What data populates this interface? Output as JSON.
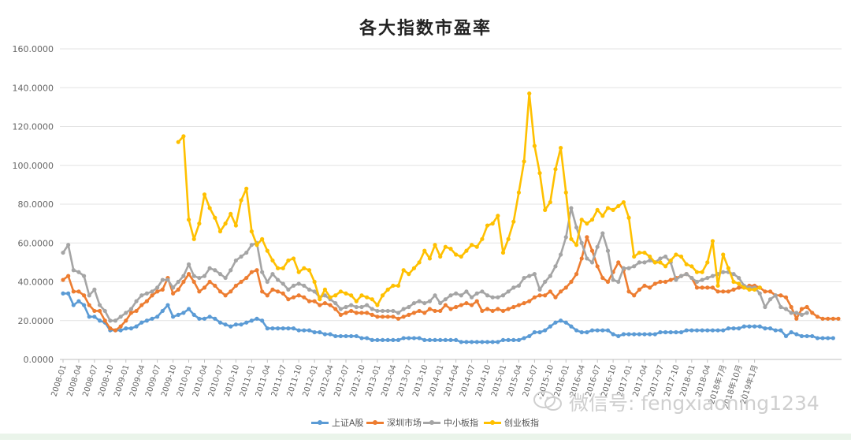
{
  "watermark": "微信号: fengxiaoning1234",
  "chart_data": {
    "type": "line",
    "title": "各大指数市盈率",
    "xlabel": "",
    "ylabel": "",
    "ylim": [
      0,
      160
    ],
    "yticks": [
      "0.0000",
      "20.0000",
      "40.0000",
      "60.0000",
      "80.0000",
      "100.0000",
      "120.0000",
      "140.0000",
      "160.0000"
    ],
    "grid": true,
    "legend_position": "bottom",
    "start_month": "2008-01",
    "xtick_labels": [
      "2008-01",
      "2008-04",
      "2008-07",
      "2008-10",
      "2009-01",
      "2009-04",
      "2009-07",
      "2009-10",
      "2010-01",
      "2010-04",
      "2010-07",
      "2010-10",
      "2011-01",
      "2011-04",
      "2011-07",
      "2011-10",
      "2012-01",
      "2012-04",
      "2012-07",
      "2012-10",
      "2013-01",
      "2013-04",
      "2013-07",
      "2013-10",
      "2014-01",
      "2014-04",
      "2014-07",
      "2014-10",
      "2015-01",
      "2015-04",
      "2015-07",
      "2015-10",
      "2016-01",
      "2016-04",
      "2016-07",
      "2016-10",
      "2017-01",
      "2017-04",
      "2017-07",
      "2017-10",
      "2018-01",
      "2018-04",
      "2018年7月",
      "2018年10月",
      "2019年1月"
    ],
    "series": [
      {
        "name": "上证A股",
        "color": "#5b9bd5",
        "start": 0,
        "values": [
          34,
          34,
          28,
          30,
          28,
          22,
          22,
          20,
          19,
          15,
          15,
          15,
          16,
          16,
          17,
          19,
          20,
          21,
          22,
          25,
          28,
          22,
          23,
          24,
          26,
          23,
          21,
          21,
          22,
          21,
          19,
          18,
          17,
          18,
          18,
          19,
          20,
          21,
          20,
          16,
          16,
          16,
          16,
          16,
          16,
          15,
          15,
          15,
          14,
          14,
          13,
          13,
          12,
          12,
          12,
          12,
          12,
          11,
          11,
          10,
          10,
          10,
          10,
          10,
          10,
          11,
          11,
          11,
          11,
          10,
          10,
          10,
          10,
          10,
          10,
          10,
          9,
          9,
          9,
          9,
          9,
          9,
          9,
          9,
          10,
          10,
          10,
          10,
          11,
          12,
          14,
          14,
          15,
          17,
          19,
          20,
          19,
          17,
          15,
          14,
          14,
          15,
          15,
          15,
          15,
          13,
          12,
          13,
          13,
          13,
          13,
          13,
          13,
          13,
          14,
          14,
          14,
          14,
          14,
          15,
          15,
          15,
          15,
          15,
          15,
          15,
          15,
          16,
          16,
          16,
          17,
          17,
          17,
          17,
          16,
          16,
          15,
          15,
          12,
          14,
          13,
          12,
          12,
          12,
          11,
          11,
          11,
          11
        ]
      },
      {
        "name": "深圳市场",
        "color": "#ed7d31",
        "start": 0,
        "values": [
          41,
          43,
          35,
          35,
          33,
          28,
          25,
          25,
          20,
          16,
          15,
          17,
          20,
          24,
          25,
          28,
          30,
          33,
          35,
          36,
          42,
          34,
          36,
          40,
          44,
          40,
          35,
          37,
          40,
          38,
          35,
          33,
          35,
          38,
          40,
          42,
          45,
          46,
          35,
          33,
          36,
          35,
          34,
          31,
          32,
          33,
          32,
          30,
          30,
          28,
          29,
          28,
          26,
          23,
          24,
          25,
          24,
          24,
          24,
          23,
          22,
          22,
          22,
          22,
          21,
          22,
          23,
          24,
          25,
          24,
          26,
          25,
          25,
          28,
          26,
          27,
          28,
          29,
          28,
          30,
          25,
          26,
          25,
          26,
          25,
          26,
          27,
          28,
          29,
          30,
          32,
          33,
          33,
          35,
          32,
          35,
          37,
          40,
          44,
          52,
          63,
          56,
          48,
          42,
          40,
          45,
          50,
          46,
          35,
          33,
          36,
          38,
          37,
          39,
          40,
          40,
          41,
          42,
          43,
          44,
          42,
          37,
          37,
          37,
          37,
          35,
          35,
          35,
          36,
          37,
          37,
          38,
          38,
          37,
          35,
          35,
          33,
          33,
          32,
          27,
          21,
          26,
          27,
          24,
          22,
          21,
          21,
          21,
          21
        ]
      },
      {
        "name": "中小板指",
        "color": "#a5a5a5",
        "start": 0,
        "values": [
          55,
          59,
          46,
          45,
          43,
          33,
          36,
          28,
          25,
          20,
          20,
          22,
          24,
          26,
          30,
          33,
          34,
          35,
          37,
          41,
          41,
          37,
          40,
          43,
          49,
          43,
          42,
          43,
          47,
          46,
          44,
          42,
          46,
          51,
          53,
          55,
          59,
          60,
          45,
          40,
          44,
          41,
          39,
          36,
          38,
          39,
          38,
          36,
          35,
          32,
          33,
          31,
          29,
          26,
          27,
          28,
          27,
          27,
          28,
          26,
          25,
          25,
          25,
          25,
          24,
          26,
          27,
          29,
          30,
          29,
          30,
          33,
          29,
          31,
          33,
          34,
          33,
          35,
          32,
          34,
          35,
          33,
          32,
          32,
          33,
          35,
          37,
          38,
          42,
          43,
          44,
          36,
          40,
          43,
          48,
          54,
          63,
          78,
          68,
          60,
          52,
          50,
          58,
          65,
          56,
          41,
          40,
          47,
          47,
          48,
          50,
          50,
          51,
          50,
          52,
          53,
          50,
          41,
          43,
          44,
          42,
          40,
          41,
          42,
          43,
          44,
          45,
          45,
          44,
          42,
          38,
          37,
          37,
          34,
          27,
          31,
          33,
          27,
          26,
          24,
          24,
          23,
          24
        ]
      },
      {
        "name": "创业板指",
        "color": "#ffc000",
        "start": 22,
        "values": [
          112,
          115,
          72,
          62,
          70,
          85,
          78,
          73,
          66,
          70,
          75,
          69,
          82,
          88,
          66,
          59,
          62,
          56,
          51,
          47,
          47,
          51,
          52,
          45,
          47,
          46,
          40,
          31,
          36,
          32,
          33,
          35,
          34,
          33,
          30,
          33,
          32,
          31,
          28,
          33,
          36,
          38,
          38,
          46,
          44,
          47,
          50,
          56,
          52,
          59,
          53,
          58,
          57,
          54,
          53,
          56,
          59,
          58,
          62,
          69,
          70,
          74,
          55,
          62,
          71,
          86,
          102,
          137,
          110,
          96,
          77,
          81,
          98,
          109,
          86,
          62,
          59,
          72,
          70,
          72,
          77,
          74,
          78,
          77,
          79,
          81,
          73,
          53,
          55,
          55,
          53,
          50,
          50,
          48,
          51,
          54,
          53,
          49,
          48,
          45,
          45,
          50,
          61,
          38,
          54,
          47,
          40,
          39,
          37,
          36,
          36,
          37
        ]
      }
    ]
  }
}
